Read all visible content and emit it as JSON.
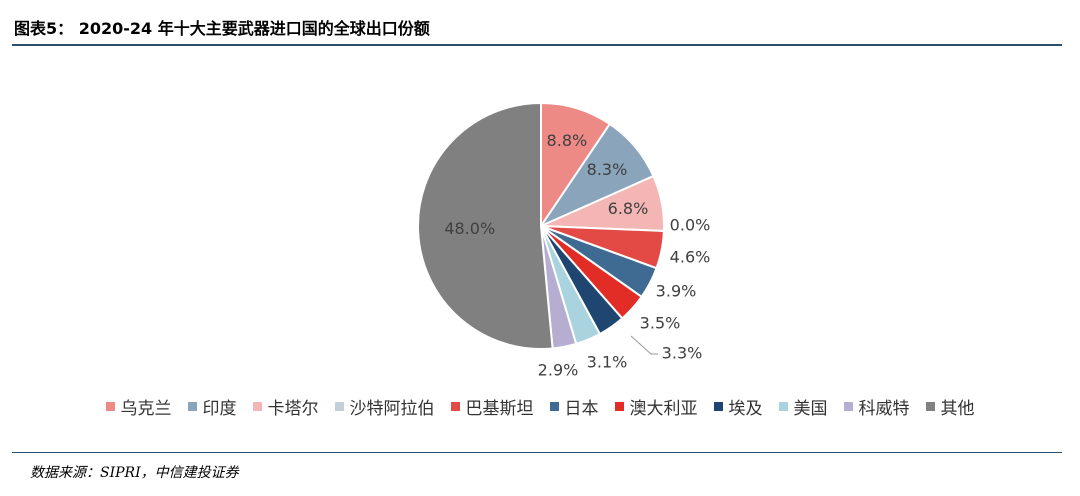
{
  "header": {
    "title": "图表5： 2020-24 年十大主要武器进口国的全球出口份额"
  },
  "footer": {
    "source": "数据来源：SIPRI，中信建投证券"
  },
  "chart_data": {
    "type": "pie",
    "title": "",
    "legend_position": "bottom",
    "slices": [
      {
        "name": "乌克兰",
        "value": 8.8,
        "label": "8.8%",
        "color": "#ed8a86"
      },
      {
        "name": "印度",
        "value": 8.3,
        "label": "8.3%",
        "color": "#8aa4bb"
      },
      {
        "name": "卡塔尔",
        "value": 6.8,
        "label": "6.8%",
        "color": "#f3b6b5"
      },
      {
        "name": "沙特阿拉伯",
        "value": 0.0,
        "label": "0.0%",
        "color": "#c5cfd9"
      },
      {
        "name": "巴基斯坦",
        "value": 4.6,
        "label": "4.6%",
        "color": "#e34a45"
      },
      {
        "name": "日本",
        "value": 3.9,
        "label": "3.9%",
        "color": "#3f6b93"
      },
      {
        "name": "澳大利亚",
        "value": 3.5,
        "label": "3.5%",
        "color": "#e22c26"
      },
      {
        "name": "埃及",
        "value": 3.3,
        "label": "3.3%",
        "color": "#1f4670"
      },
      {
        "name": "美国",
        "value": 3.1,
        "label": "3.1%",
        "color": "#a8d3df"
      },
      {
        "name": "科威特",
        "value": 2.9,
        "label": "2.9%",
        "color": "#b5aed0"
      },
      {
        "name": "其他",
        "value": 48.0,
        "label": "48.0%",
        "color": "#808080"
      }
    ]
  }
}
